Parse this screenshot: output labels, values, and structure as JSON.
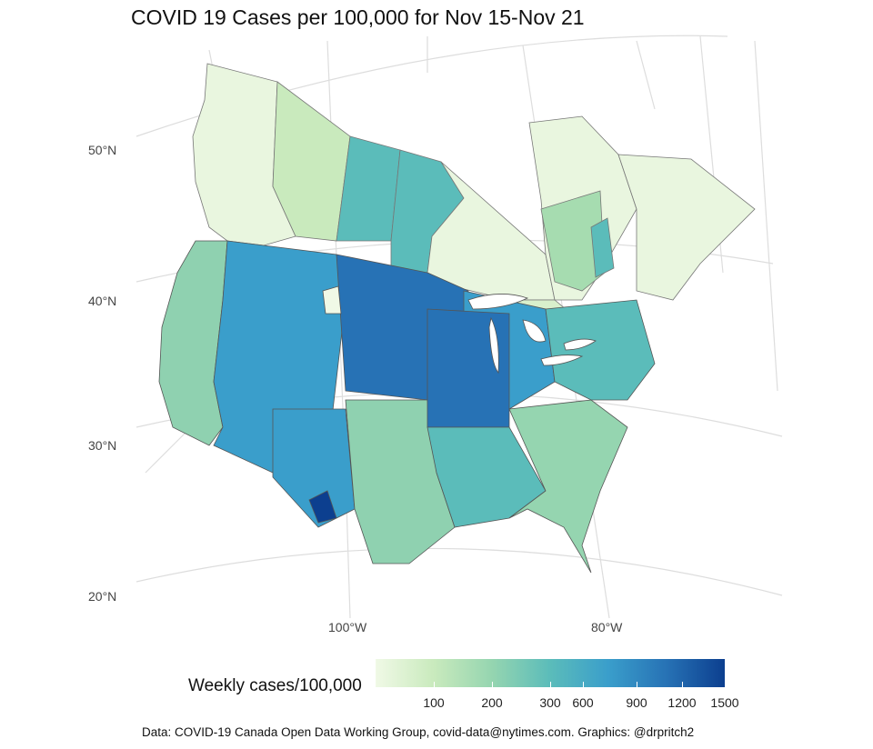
{
  "title": "COVID 19 Cases per 100,000 for Nov 15-Nov 21",
  "latitude_labels": [
    "50°N",
    "40°N",
    "30°N",
    "20°N"
  ],
  "longitude_labels": [
    "100°W",
    "80°W"
  ],
  "legend": {
    "title": "Weekly cases/100,000",
    "ticks": [
      "100",
      "200",
      "300",
      "600",
      "900",
      "1200",
      "1500"
    ],
    "colors": [
      "#f0f9e6",
      "#c9eabd",
      "#95d5b0",
      "#5bbcba",
      "#3a9ecb",
      "#2772b5",
      "#0c3f8f"
    ]
  },
  "source": "Data: COVID-19 Canada Open Data Working Group, covid-data@nytimes.com. Graphics: @drpritch2"
}
